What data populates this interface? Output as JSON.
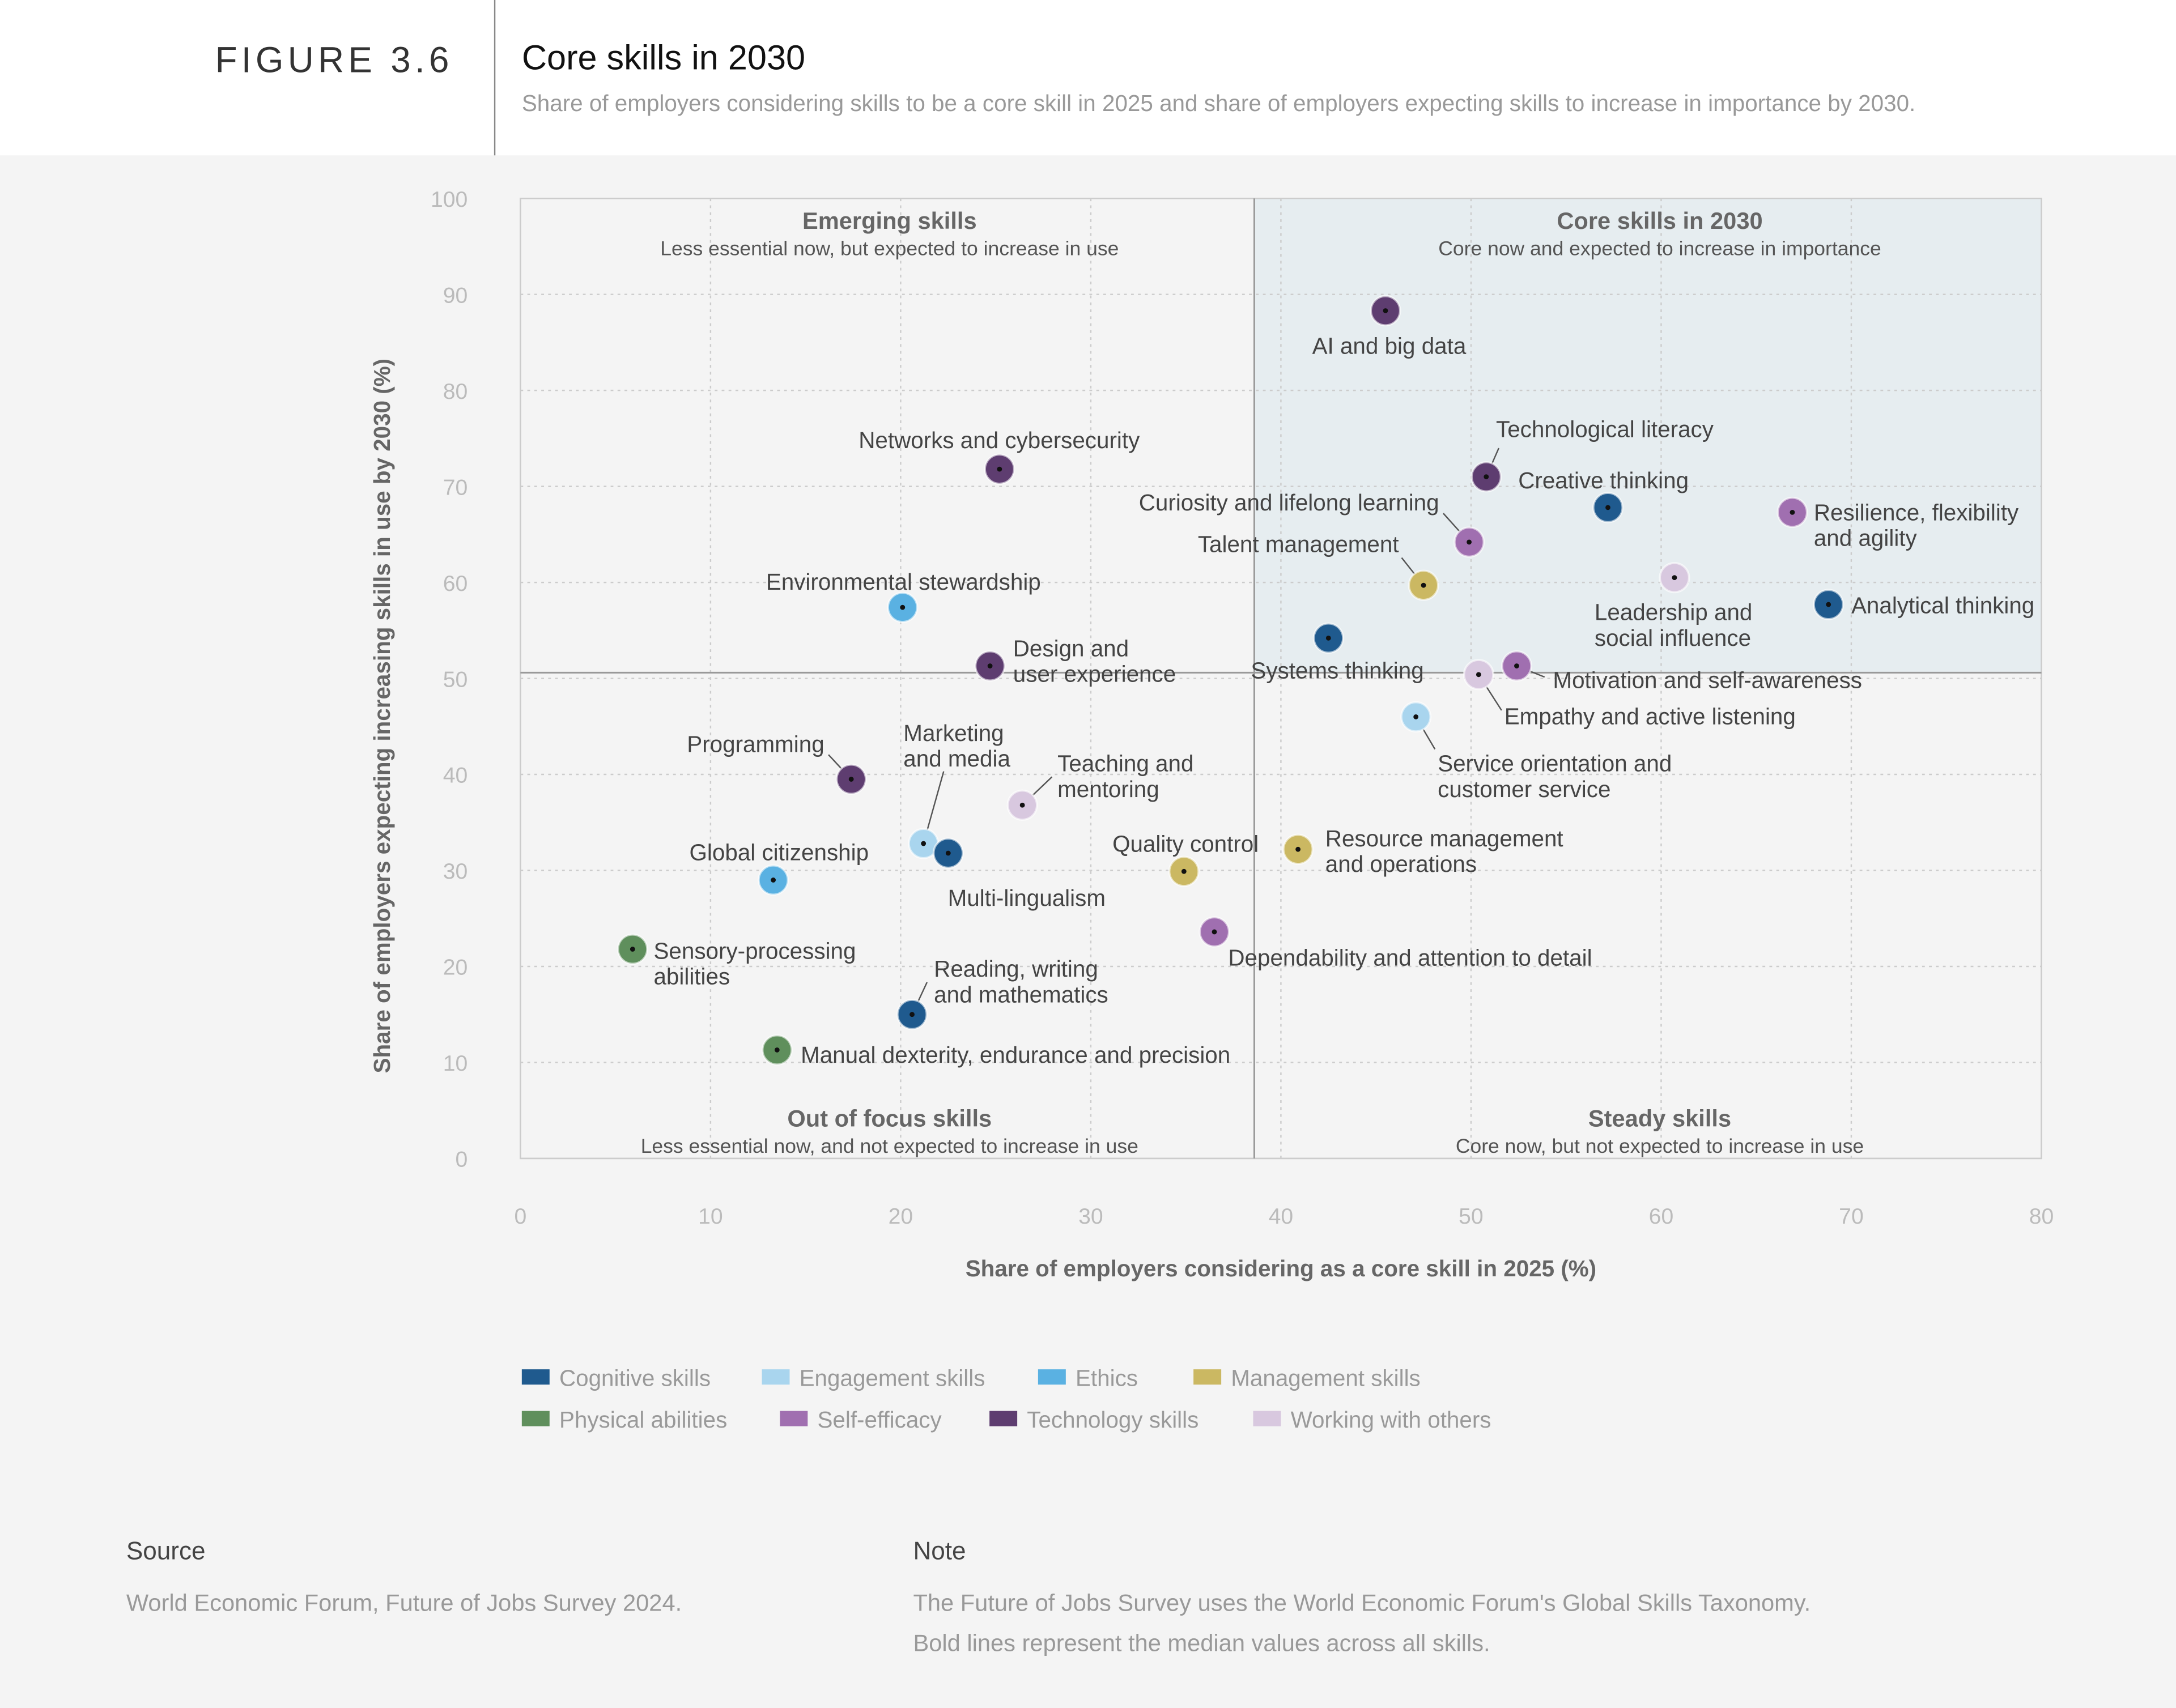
{
  "header": {
    "figure_number": "FIGURE 3.6",
    "title": "Core skills in 2030",
    "subtitle": "Share of employers considering skills to be a core skill in 2025 and share of employers expecting skills to increase in importance by 2030."
  },
  "chart_data": {
    "type": "scatter",
    "xlabel": "Share of employers considering as a core skill in 2025 (%)",
    "ylabel": "Share of employers expecting increasing skills in use by 2030 (%)",
    "xlim": [
      0,
      80
    ],
    "ylim": [
      0,
      100
    ],
    "xticks": [
      "0",
      "10",
      "20",
      "30",
      "40",
      "50",
      "60",
      "70",
      "80"
    ],
    "yticks": [
      "0",
      "10",
      "20",
      "30",
      "40",
      "50",
      "60",
      "70",
      "80",
      "90",
      "100"
    ],
    "grid": true,
    "medians": {
      "x": 38.6,
      "y": 50.6
    },
    "quadrants": [
      {
        "title": "Emerging skills",
        "subtitle": "Less essential now, but expected to increase in use"
      },
      {
        "title": "Core skills in 2030",
        "subtitle": "Core now and expected to increase in importance"
      },
      {
        "title": "Out of focus skills",
        "subtitle": "Less essential now, and not expected to increase in use"
      },
      {
        "title": "Steady skills",
        "subtitle": "Core now, but not expected to increase in use"
      }
    ],
    "categories": [
      {
        "name": "Cognitive skills",
        "color": "#1f5a8e"
      },
      {
        "name": "Engagement skills",
        "color": "#a9d5ee"
      },
      {
        "name": "Ethics",
        "color": "#5ab1e2"
      },
      {
        "name": "Management skills",
        "color": "#cbb862"
      },
      {
        "name": "Physical abilities",
        "color": "#5f8f5c"
      },
      {
        "name": "Self-efficacy",
        "color": "#a06fb0"
      },
      {
        "name": "Technology skills",
        "color": "#5e3d70"
      },
      {
        "name": "Working with others",
        "color": "#d8c8df"
      }
    ],
    "legend_position": "bottom-left",
    "points": [
      {
        "label": [
          "AI and big data"
        ],
        "category": 6,
        "x": 45.5,
        "y": 88.3
      },
      {
        "label": [
          "Networks and cybersecurity"
        ],
        "category": 6,
        "x": 25.2,
        "y": 71.8
      },
      {
        "label": [
          "Technological literacy"
        ],
        "category": 6,
        "x": 50.8,
        "y": 71.0
      },
      {
        "label": [
          "Creative thinking"
        ],
        "category": 0,
        "x": 57.2,
        "y": 67.8
      },
      {
        "label": [
          "Resilience, flexibility",
          "and agility"
        ],
        "category": 5,
        "x": 66.9,
        "y": 67.3
      },
      {
        "label": [
          "Curiosity and lifelong learning"
        ],
        "category": 5,
        "x": 49.9,
        "y": 64.2
      },
      {
        "label": [
          "Talent management"
        ],
        "category": 3,
        "x": 47.5,
        "y": 59.7
      },
      {
        "label": [
          "Leadership and",
          "social influence"
        ],
        "category": 7,
        "x": 60.7,
        "y": 60.5
      },
      {
        "label": [
          "Analytical thinking"
        ],
        "category": 0,
        "x": 68.8,
        "y": 57.7
      },
      {
        "label": [
          "Environmental stewardship"
        ],
        "category": 2,
        "x": 20.1,
        "y": 57.4
      },
      {
        "label": [
          "Systems thinking"
        ],
        "category": 0,
        "x": 42.5,
        "y": 54.2
      },
      {
        "label": [
          "Design and",
          "user experience"
        ],
        "category": 6,
        "x": 24.7,
        "y": 51.3
      },
      {
        "label": [
          "Motivation and self-awareness"
        ],
        "category": 5,
        "x": 52.4,
        "y": 51.3
      },
      {
        "label": [
          "Empathy and active listening"
        ],
        "category": 7,
        "x": 50.4,
        "y": 50.4
      },
      {
        "label": [
          "Service orientation and",
          "customer service"
        ],
        "category": 1,
        "x": 47.1,
        "y": 46.0
      },
      {
        "label": [
          "Programming"
        ],
        "category": 6,
        "x": 17.4,
        "y": 39.5
      },
      {
        "label": [
          "Teaching and",
          "mentoring"
        ],
        "category": 7,
        "x": 26.4,
        "y": 36.8
      },
      {
        "label": [
          "Marketing",
          "and media"
        ],
        "category": 1,
        "x": 21.2,
        "y": 32.8
      },
      {
        "label": [
          "Multi-lingualism"
        ],
        "category": 0,
        "x": 22.5,
        "y": 31.8
      },
      {
        "label": [
          "Global citizenship"
        ],
        "category": 2,
        "x": 13.3,
        "y": 29.0
      },
      {
        "label": [
          "Quality control"
        ],
        "category": 3,
        "x": 34.9,
        "y": 29.9
      },
      {
        "label": [
          "Resource management",
          "and operations"
        ],
        "category": 3,
        "x": 40.9,
        "y": 32.2
      },
      {
        "label": [
          "Dependability and attention to detail"
        ],
        "category": 5,
        "x": 36.5,
        "y": 23.6
      },
      {
        "label": [
          "Sensory-processing",
          "abilities"
        ],
        "category": 4,
        "x": 5.9,
        "y": 21.8
      },
      {
        "label": [
          "Reading, writing",
          "and mathematics"
        ],
        "category": 0,
        "x": 20.6,
        "y": 15.0
      },
      {
        "label": [
          "Manual dexterity, endurance and precision"
        ],
        "category": 4,
        "x": 13.5,
        "y": 11.3
      }
    ]
  },
  "footer": {
    "source_heading": "Source",
    "source_text": "World Economic Forum, Future of Jobs Survey 2024.",
    "note_heading": "Note",
    "note_lines": [
      "The Future of Jobs Survey uses the World Economic Forum's Global Skills Taxonomy.",
      "Bold lines represent the median values across all skills."
    ]
  }
}
